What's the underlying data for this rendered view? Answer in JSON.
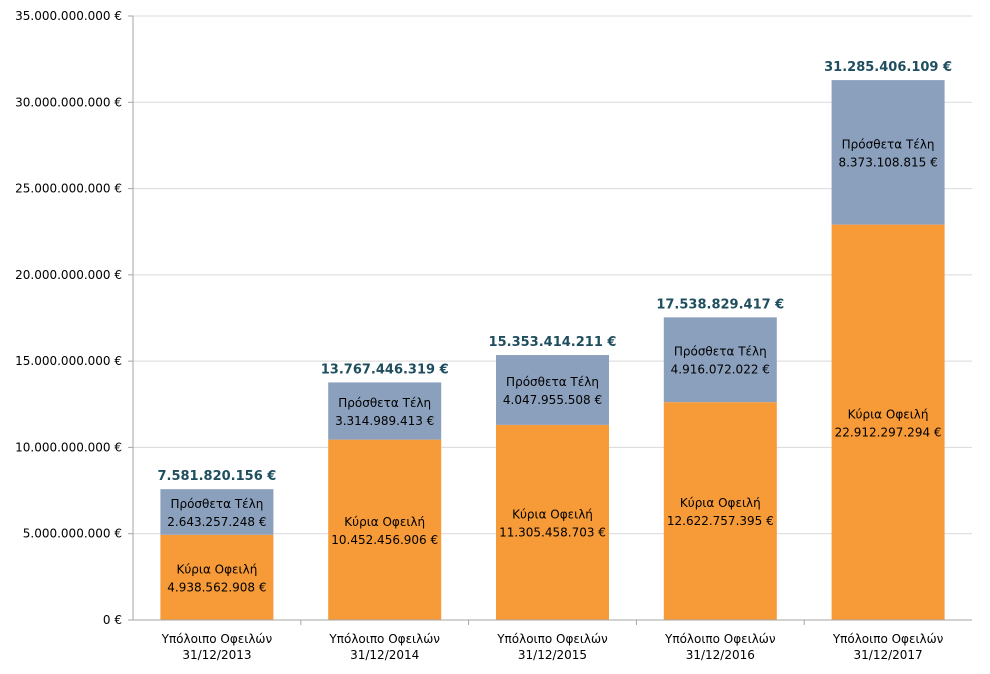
{
  "chart_data": {
    "type": "bar",
    "stacked": true,
    "title": "",
    "xlabel": "",
    "ylabel": "",
    "ylim": [
      0,
      35000000000
    ],
    "yticks": [
      {
        "value": 0,
        "label": "0 €"
      },
      {
        "value": 5000000000,
        "label": "5.000.000.000  €"
      },
      {
        "value": 10000000000,
        "label": "10.000.000.000  €"
      },
      {
        "value": 15000000000,
        "label": "15.000.000.000  €"
      },
      {
        "value": 20000000000,
        "label": "20.000.000.000  €"
      },
      {
        "value": 25000000000,
        "label": "25.000.000.000  €"
      },
      {
        "value": 30000000000,
        "label": "30.000.000.000  €"
      },
      {
        "value": 35000000000,
        "label": "35.000.000.000  €"
      }
    ],
    "categories": [
      [
        "Υπόλοιπο Οφειλών",
        "31/12/2013"
      ],
      [
        "Υπόλοιπο Οφειλών",
        "31/12/2014"
      ],
      [
        "Υπόλοιπο Οφειλών",
        "31/12/2015"
      ],
      [
        "Υπόλοιπο Οφειλών",
        "31/12/2016"
      ],
      [
        "Υπόλοιπο Οφειλών",
        "31/12/2017"
      ]
    ],
    "series": [
      {
        "name": "Κύρια Οφειλή",
        "color": "#f79a38",
        "values": [
          4938562908,
          10452456906,
          11305458703,
          12622757395,
          22912297294
        ],
        "labels": [
          "4.938.562.908  €",
          "10.452.456.906  €",
          "11.305.458.703  €",
          "12.622.757.395  €",
          "22.912.297.294  €"
        ]
      },
      {
        "name": "Πρόσθετα Τέλη",
        "color": "#8ba0bd",
        "values": [
          2643257248,
          3314989413,
          4047955508,
          4916072022,
          8373108815
        ],
        "labels": [
          "2.643.257.248  €",
          "3.314.989.413  €",
          "4.047.955.508  €",
          "4.916.072.022  €",
          "8.373.108.815  €"
        ]
      }
    ],
    "totals": [
      "7.581.820.156 €",
      "13.767.446.319 €",
      "15.353.414.211 €",
      "17.538.829.417 €",
      "31.285.406.109 €"
    ],
    "colors": {
      "axis": "#a6a6a6",
      "grid": "#d9d9d9",
      "total_label": "#1f4e5f"
    }
  }
}
